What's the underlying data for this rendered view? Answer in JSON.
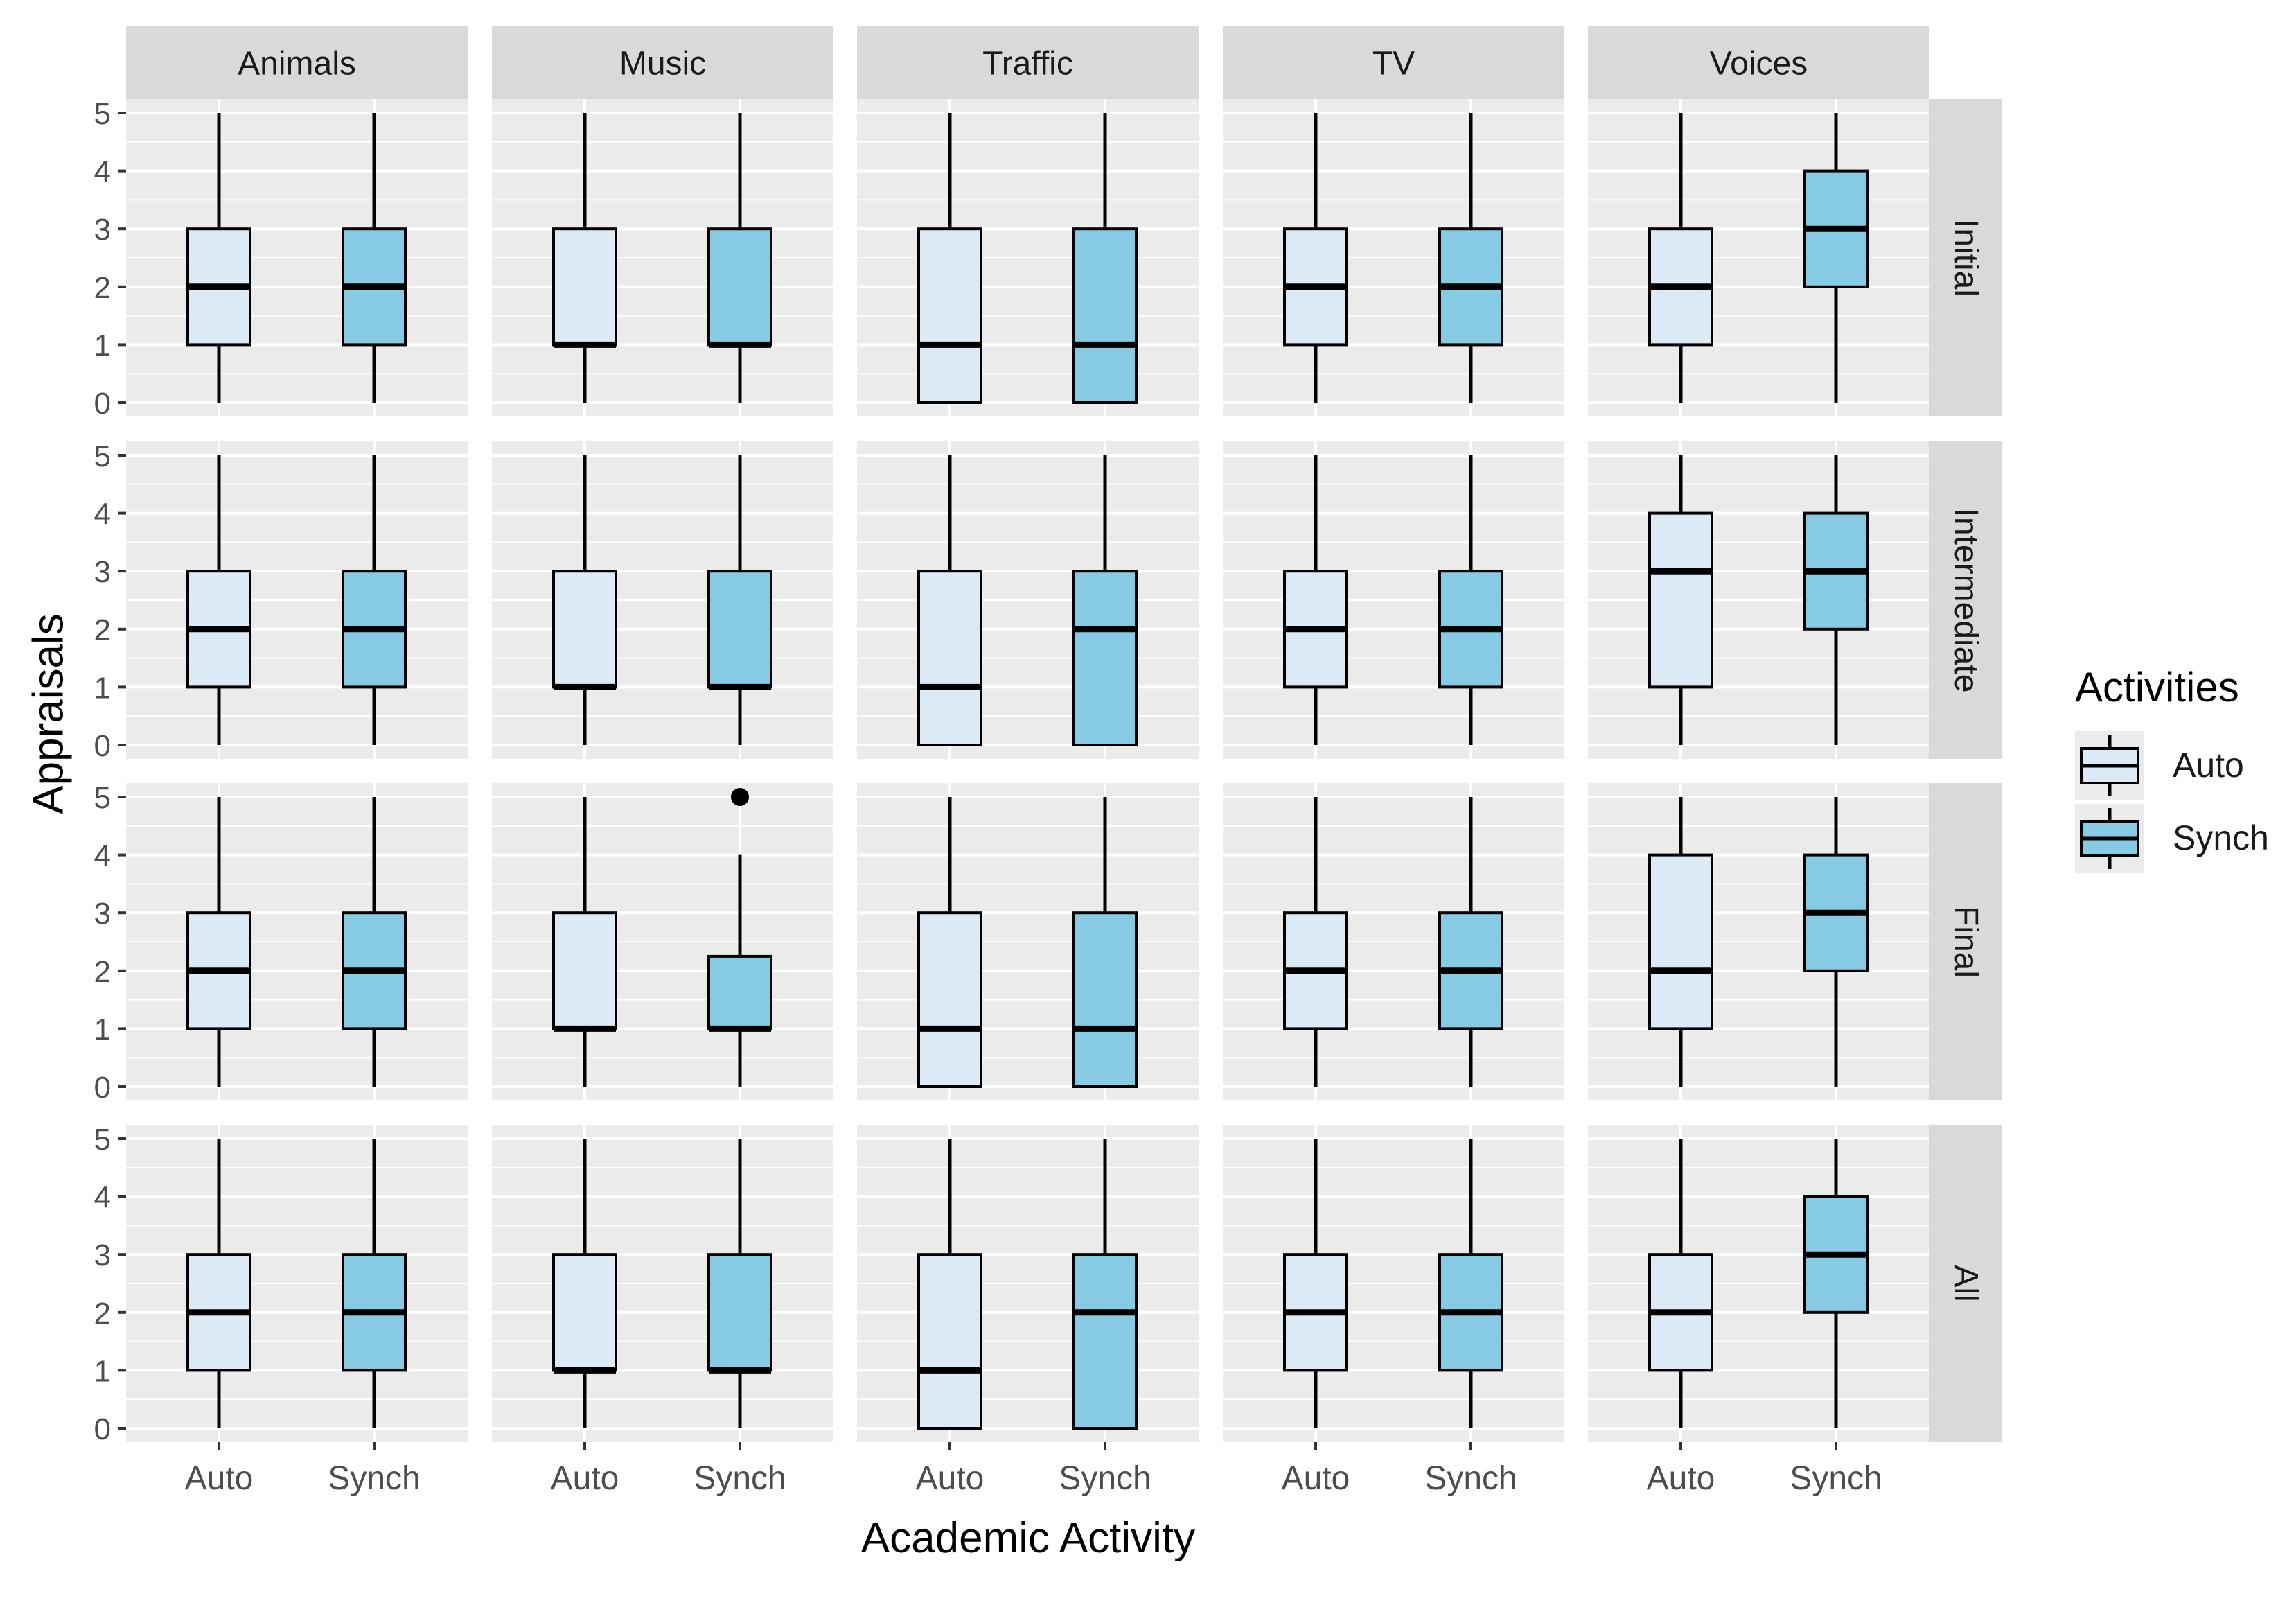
{
  "chart_data": {
    "type": "boxplot",
    "facet_cols": [
      "Animals",
      "Music",
      "Traffic",
      "TV",
      "Voices"
    ],
    "facet_rows": [
      "Initial",
      "Intermediate",
      "Final",
      "All"
    ],
    "categories": [
      "Auto",
      "Synch"
    ],
    "xlabel": "Academic Activity",
    "ylabel": "Appraisals",
    "ylim": [
      0,
      5
    ],
    "yticks": [
      0,
      1,
      2,
      3,
      4,
      5
    ],
    "legend": {
      "title": "Activities",
      "position": "right",
      "entries": [
        {
          "label": "Auto",
          "color": "#DCEAF6"
        },
        {
          "label": "Synch",
          "color": "#87CAE4"
        }
      ]
    },
    "colors": {
      "panel_bg": "#EBEBEB",
      "grid": "#FFFFFF",
      "strip_bg": "#D9D9D9",
      "box_outline": "#000000",
      "tick_text": "#4D4D4D"
    },
    "boxes": [
      [
        [
          {
            "min": 0,
            "q1": 1,
            "median": 2,
            "q3": 3,
            "max": 5,
            "outliers": []
          },
          {
            "min": 0,
            "q1": 1,
            "median": 2,
            "q3": 3,
            "max": 5,
            "outliers": []
          }
        ],
        [
          {
            "min": 0,
            "q1": 1,
            "median": 1,
            "q3": 3,
            "max": 5,
            "outliers": []
          },
          {
            "min": 0,
            "q1": 1,
            "median": 1,
            "q3": 3,
            "max": 5,
            "outliers": []
          }
        ],
        [
          {
            "min": 0,
            "q1": 0,
            "median": 1,
            "q3": 3,
            "max": 5,
            "outliers": []
          },
          {
            "min": 0,
            "q1": 0,
            "median": 1,
            "q3": 3,
            "max": 5,
            "outliers": []
          }
        ],
        [
          {
            "min": 0,
            "q1": 1,
            "median": 2,
            "q3": 3,
            "max": 5,
            "outliers": []
          },
          {
            "min": 0,
            "q1": 1,
            "median": 2,
            "q3": 3,
            "max": 5,
            "outliers": []
          }
        ],
        [
          {
            "min": 0,
            "q1": 1,
            "median": 2,
            "q3": 3,
            "max": 5,
            "outliers": []
          },
          {
            "min": 0,
            "q1": 2,
            "median": 3,
            "q3": 4,
            "max": 5,
            "outliers": []
          }
        ]
      ],
      [
        [
          {
            "min": 0,
            "q1": 1,
            "median": 2,
            "q3": 3,
            "max": 5,
            "outliers": []
          },
          {
            "min": 0,
            "q1": 1,
            "median": 2,
            "q3": 3,
            "max": 5,
            "outliers": []
          }
        ],
        [
          {
            "min": 0,
            "q1": 1,
            "median": 1,
            "q3": 3,
            "max": 5,
            "outliers": []
          },
          {
            "min": 0,
            "q1": 1,
            "median": 1,
            "q3": 3,
            "max": 5,
            "outliers": []
          }
        ],
        [
          {
            "min": 0,
            "q1": 0,
            "median": 1,
            "q3": 3,
            "max": 5,
            "outliers": []
          },
          {
            "min": 0,
            "q1": 0,
            "median": 2,
            "q3": 3,
            "max": 5,
            "outliers": []
          }
        ],
        [
          {
            "min": 0,
            "q1": 1,
            "median": 2,
            "q3": 3,
            "max": 5,
            "outliers": []
          },
          {
            "min": 0,
            "q1": 1,
            "median": 2,
            "q3": 3,
            "max": 5,
            "outliers": []
          }
        ],
        [
          {
            "min": 0,
            "q1": 1,
            "median": 3,
            "q3": 4,
            "max": 5,
            "outliers": []
          },
          {
            "min": 0,
            "q1": 2,
            "median": 3,
            "q3": 4,
            "max": 5,
            "outliers": []
          }
        ]
      ],
      [
        [
          {
            "min": 0,
            "q1": 1,
            "median": 2,
            "q3": 3,
            "max": 5,
            "outliers": []
          },
          {
            "min": 0,
            "q1": 1,
            "median": 2,
            "q3": 3,
            "max": 5,
            "outliers": []
          }
        ],
        [
          {
            "min": 0,
            "q1": 1,
            "median": 1,
            "q3": 3,
            "max": 5,
            "outliers": []
          },
          {
            "min": 0,
            "q1": 1,
            "median": 1,
            "q3": 2.25,
            "max": 4,
            "outliers": [
              5
            ]
          }
        ],
        [
          {
            "min": 0,
            "q1": 0,
            "median": 1,
            "q3": 3,
            "max": 5,
            "outliers": []
          },
          {
            "min": 0,
            "q1": 0,
            "median": 1,
            "q3": 3,
            "max": 5,
            "outliers": []
          }
        ],
        [
          {
            "min": 0,
            "q1": 1,
            "median": 2,
            "q3": 3,
            "max": 5,
            "outliers": []
          },
          {
            "min": 0,
            "q1": 1,
            "median": 2,
            "q3": 3,
            "max": 5,
            "outliers": []
          }
        ],
        [
          {
            "min": 0,
            "q1": 1,
            "median": 2,
            "q3": 4,
            "max": 5,
            "outliers": []
          },
          {
            "min": 0,
            "q1": 2,
            "median": 3,
            "q3": 4,
            "max": 5,
            "outliers": []
          }
        ]
      ],
      [
        [
          {
            "min": 0,
            "q1": 1,
            "median": 2,
            "q3": 3,
            "max": 5,
            "outliers": []
          },
          {
            "min": 0,
            "q1": 1,
            "median": 2,
            "q3": 3,
            "max": 5,
            "outliers": []
          }
        ],
        [
          {
            "min": 0,
            "q1": 1,
            "median": 1,
            "q3": 3,
            "max": 5,
            "outliers": []
          },
          {
            "min": 0,
            "q1": 1,
            "median": 1,
            "q3": 3,
            "max": 5,
            "outliers": []
          }
        ],
        [
          {
            "min": 0,
            "q1": 0,
            "median": 1,
            "q3": 3,
            "max": 5,
            "outliers": []
          },
          {
            "min": 0,
            "q1": 0,
            "median": 2,
            "q3": 3,
            "max": 5,
            "outliers": []
          }
        ],
        [
          {
            "min": 0,
            "q1": 1,
            "median": 2,
            "q3": 3,
            "max": 5,
            "outliers": []
          },
          {
            "min": 0,
            "q1": 1,
            "median": 2,
            "q3": 3,
            "max": 5,
            "outliers": []
          }
        ],
        [
          {
            "min": 0,
            "q1": 1,
            "median": 2,
            "q3": 3,
            "max": 5,
            "outliers": []
          },
          {
            "min": 0,
            "q1": 2,
            "median": 3,
            "q3": 4,
            "max": 5,
            "outliers": []
          }
        ]
      ]
    ]
  }
}
